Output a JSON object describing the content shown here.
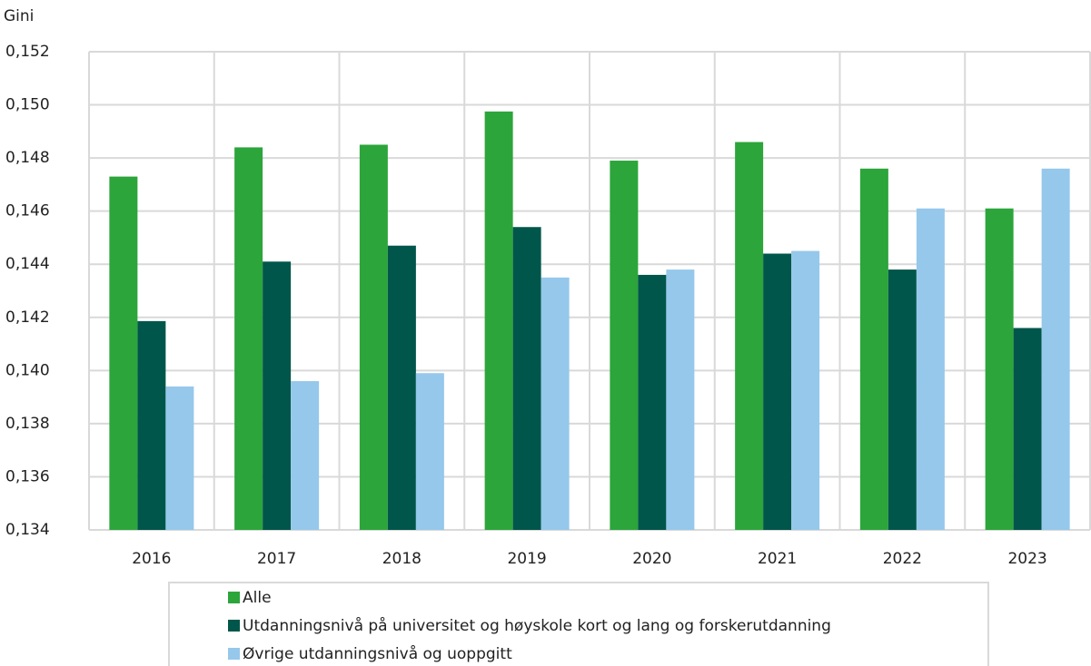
{
  "chart_data": {
    "type": "bar",
    "y_label": "Gini",
    "categories": [
      "2016",
      "2017",
      "2018",
      "2019",
      "2020",
      "2021",
      "2022",
      "2023"
    ],
    "series": [
      {
        "name": "Alle",
        "color": "#2ca53b",
        "values": [
          0.1473,
          0.1484,
          0.1485,
          0.14975,
          0.1479,
          0.1486,
          0.1476,
          0.1461
        ]
      },
      {
        "name": "Utdanningsnivå på universitet og høyskole kort og lang og forskerutdanning",
        "color": "#00564a",
        "values": [
          0.14186,
          0.1441,
          0.1447,
          0.1454,
          0.1436,
          0.1444,
          0.1438,
          0.1416
        ]
      },
      {
        "name": "Øvrige utdanningsnivå og uoppgitt",
        "color": "#95c8eb",
        "values": [
          0.1394,
          0.1396,
          0.1399,
          0.1435,
          0.1438,
          0.1445,
          0.1461,
          0.1476
        ]
      }
    ],
    "ylim": [
      0.134,
      0.152
    ],
    "yticks": [
      {
        "value": 0.134,
        "label": "0,134"
      },
      {
        "value": 0.136,
        "label": "0,136"
      },
      {
        "value": 0.138,
        "label": "0,138"
      },
      {
        "value": 0.14,
        "label": "0,140"
      },
      {
        "value": 0.142,
        "label": "0,142"
      },
      {
        "value": 0.144,
        "label": "0,144"
      },
      {
        "value": 0.146,
        "label": "0,146"
      },
      {
        "value": 0.148,
        "label": "0,148"
      },
      {
        "value": 0.15,
        "label": "0,150"
      },
      {
        "value": 0.152,
        "label": "0,152"
      }
    ],
    "grid": true,
    "legend": "bottom"
  }
}
